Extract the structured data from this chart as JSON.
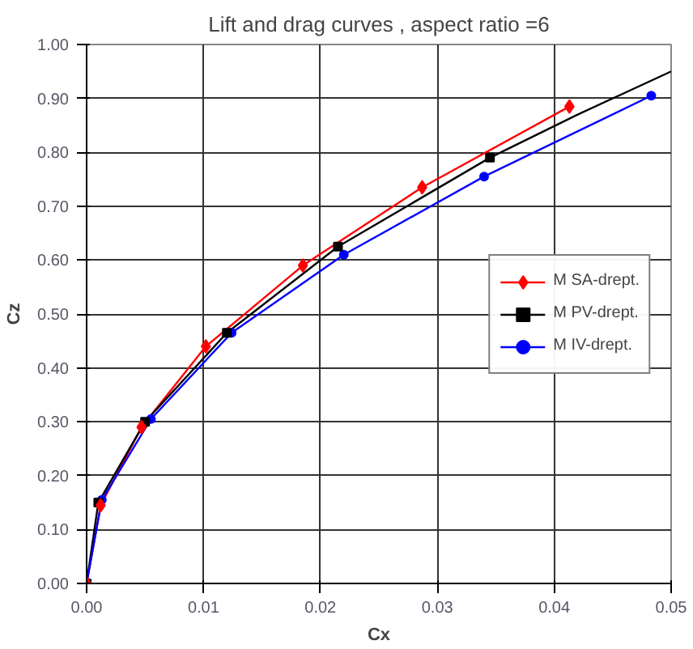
{
  "chart_data": {
    "type": "line",
    "title": "Lift and drag curves , aspect ratio =6",
    "xlabel": "Cx",
    "ylabel": "Cz",
    "xlim": [
      0,
      0.05
    ],
    "ylim": [
      0,
      1.0
    ],
    "xticks": [
      {
        "value": 0,
        "label": "0.00"
      },
      {
        "value": 0.01,
        "label": "0.01"
      },
      {
        "value": 0.02,
        "label": "0.02"
      },
      {
        "value": 0.03,
        "label": "0.03"
      },
      {
        "value": 0.04,
        "label": "0.04"
      },
      {
        "value": 0.05,
        "label": "0.05"
      }
    ],
    "yticks": [
      {
        "value": 0,
        "label": "0.00"
      },
      {
        "value": 0.1,
        "label": "0.10"
      },
      {
        "value": 0.2,
        "label": "0.20"
      },
      {
        "value": 0.3,
        "label": "0.30"
      },
      {
        "value": 0.4,
        "label": "0.40"
      },
      {
        "value": 0.5,
        "label": "0.50"
      },
      {
        "value": 0.6,
        "label": "0.60"
      },
      {
        "value": 0.7,
        "label": "0.70"
      },
      {
        "value": 0.8,
        "label": "0.80"
      },
      {
        "value": 0.9,
        "label": "0.90"
      },
      {
        "value": 1.0,
        "label": "1.00"
      }
    ],
    "grid": true,
    "legend": "right",
    "line_style": "solid",
    "series": [
      {
        "name": "M SA-drept.",
        "color": "#ff0000",
        "marker": "diamond",
        "x": [
          0,
          0.0012,
          0.0047,
          0.0102,
          0.0185,
          0.0287,
          0.0413
        ],
        "values": [
          0,
          0.145,
          0.29,
          0.44,
          0.59,
          0.735,
          0.885
        ]
      },
      {
        "name": "M PV-drept.",
        "color": "#000000",
        "marker": "square",
        "x": [
          0,
          0.001,
          0.005,
          0.012,
          0.0215,
          0.0345
        ],
        "values": [
          0,
          0.15,
          0.3,
          0.465,
          0.625,
          0.79
        ]
      },
      {
        "name": "M IV-drept.",
        "color": "#0000ff",
        "marker": "circle",
        "x": [
          0,
          0.0013,
          0.0055,
          0.0124,
          0.022,
          0.034,
          0.0483
        ],
        "values": [
          0,
          0.155,
          0.305,
          0.465,
          0.61,
          0.755,
          0.905
        ]
      },
      {
        "color": "#000000",
        "marker": "none",
        "x": [
          0.0345,
          0.042,
          0.05
        ],
        "values": [
          0.79,
          0.87,
          0.95
        ]
      }
    ]
  }
}
